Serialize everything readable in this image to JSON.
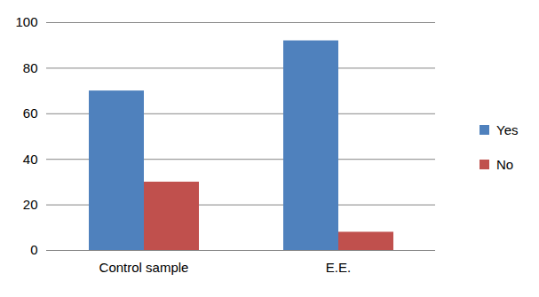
{
  "chart_data": {
    "type": "bar",
    "categories": [
      "Control sample",
      "E.E."
    ],
    "series": [
      {
        "name": "Yes",
        "color": "#4f81bd",
        "values": [
          70,
          92
        ]
      },
      {
        "name": "No",
        "color": "#c0504d",
        "values": [
          30,
          8
        ]
      }
    ],
    "ylim": [
      0,
      100
    ],
    "yticks": [
      0,
      20,
      40,
      60,
      80,
      100
    ],
    "grid": true,
    "legend": "right"
  }
}
